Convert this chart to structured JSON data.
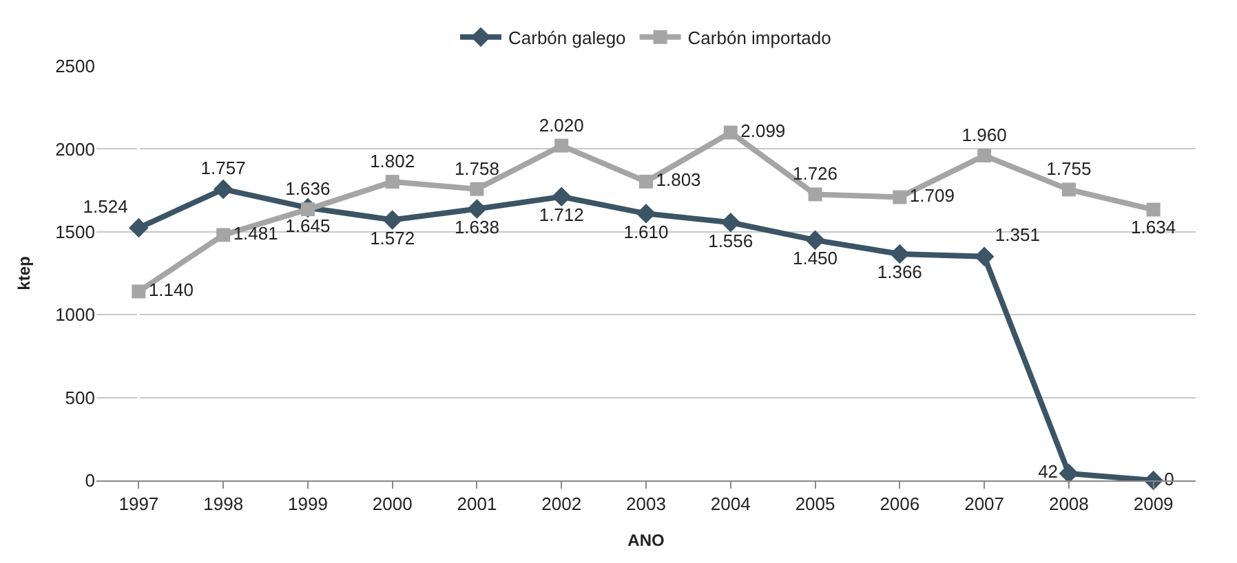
{
  "chart_data": {
    "type": "line",
    "xlabel": "ANO",
    "ylabel": "ktep",
    "categories": [
      "1997",
      "1998",
      "1999",
      "2000",
      "2001",
      "2002",
      "2003",
      "2004",
      "2005",
      "2006",
      "2007",
      "2008",
      "2009"
    ],
    "series": [
      {
        "name": "Carbón galego",
        "color": "#3b5466",
        "marker": "diamond",
        "values": [
          1524,
          1757,
          1645,
          1572,
          1638,
          1712,
          1610,
          1556,
          1450,
          1366,
          1351,
          42,
          0
        ],
        "value_labels": [
          "1.524",
          "1.757",
          "1.645",
          "1.572",
          "1.638",
          "1.712",
          "1.610",
          "1.556",
          "1.450",
          "1.366",
          "1.351",
          "42",
          "0"
        ]
      },
      {
        "name": "Carbón importado",
        "color": "#a5a5a5",
        "marker": "square",
        "values": [
          1140,
          1481,
          1636,
          1802,
          1758,
          2020,
          1803,
          2099,
          1726,
          1709,
          1960,
          1755,
          1634
        ],
        "value_labels": [
          "1.140",
          "1.481",
          "1.636",
          "1.802",
          "1.758",
          "2.020",
          "1.803",
          "2.099",
          "1.726",
          "1.709",
          "1.960",
          "1.755",
          "1.634"
        ]
      }
    ],
    "ylim": [
      0,
      2500
    ],
    "yticks": [
      0,
      500,
      1000,
      1500,
      2000,
      2500
    ],
    "grid": "y",
    "legend": "top"
  }
}
